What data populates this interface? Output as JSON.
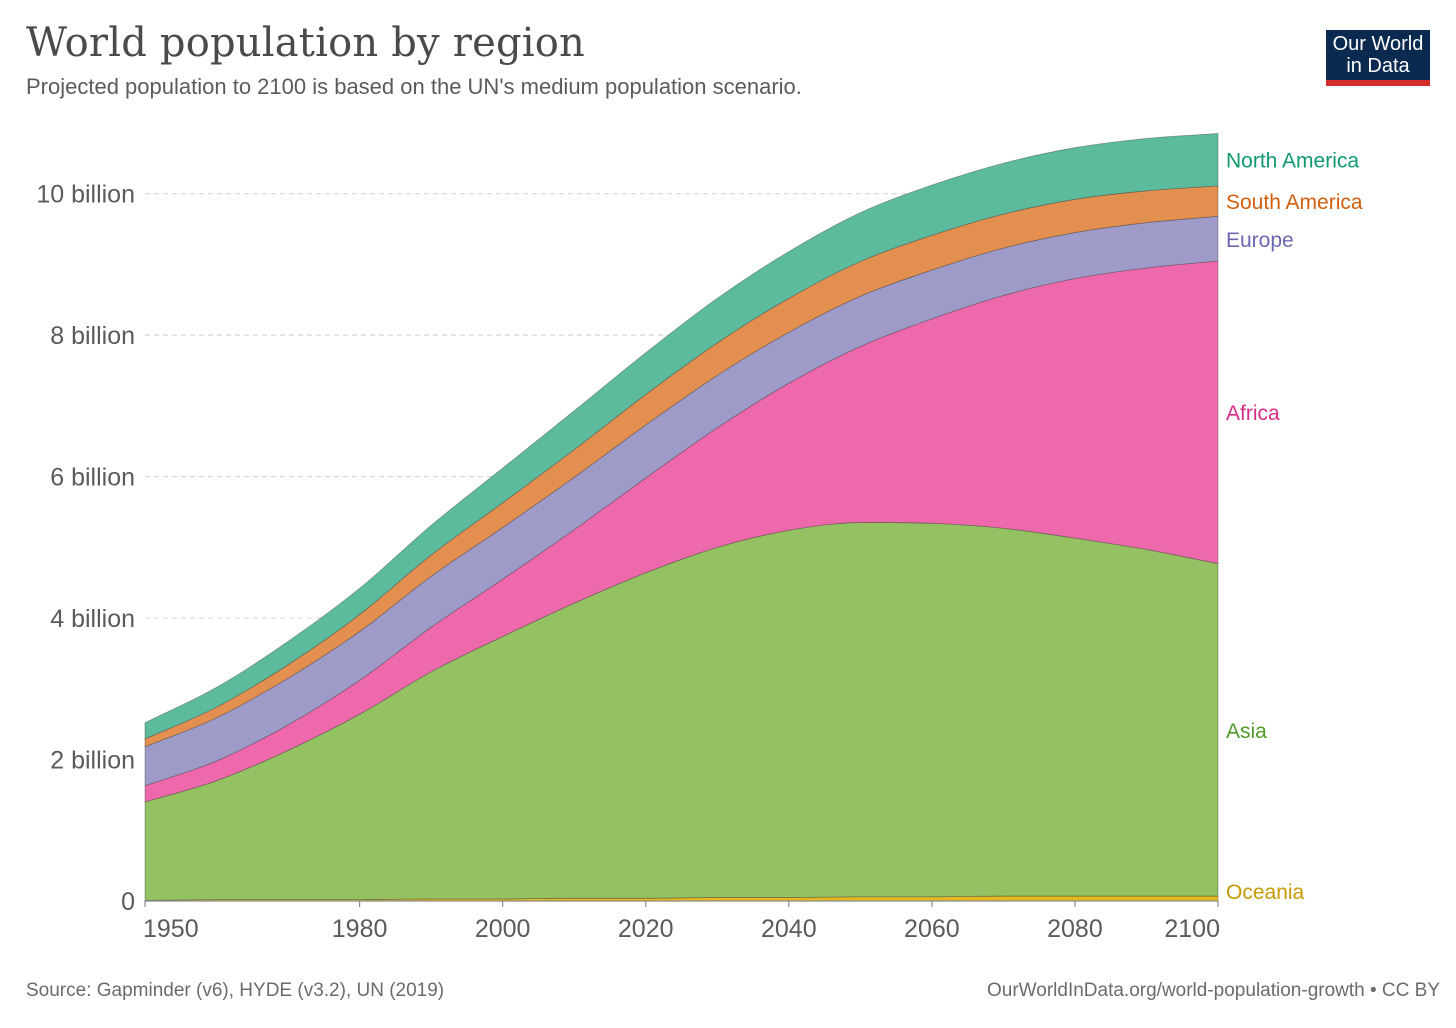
{
  "header": {
    "title": "World population by region",
    "subtitle": "Projected population to 2100 is based on the UN's medium population scenario."
  },
  "logo": {
    "line1": "Our World",
    "line2": "in Data",
    "bg_color": "#0b2a4f",
    "accent_color": "#d42b2b"
  },
  "footer": {
    "source": "Source: Gapminder (v6), HYDE (v3.2), UN (2019)",
    "url": "OurWorldInData.org/world-population-growth • CC BY"
  },
  "chart_data": {
    "type": "area",
    "stacked": true,
    "title": "World population by region",
    "subtitle": "Projected population to 2100 is based on the UN's medium population scenario.",
    "xlim": [
      1950,
      2100
    ],
    "ylim": [
      0,
      10.9
    ],
    "y_unit": "billion",
    "x_ticks": [
      1950,
      1980,
      2000,
      2020,
      2040,
      2060,
      2080,
      2100
    ],
    "y_ticks": [
      {
        "value": 0,
        "label": "0"
      },
      {
        "value": 2,
        "label": "2 billion"
      },
      {
        "value": 4,
        "label": "4 billion"
      },
      {
        "value": 6,
        "label": "6 billion"
      },
      {
        "value": 8,
        "label": "8 billion"
      },
      {
        "value": 10,
        "label": "10 billion"
      }
    ],
    "grid": "horizontal dashed",
    "legend": "right-end labels",
    "x": [
      1950,
      1960,
      1970,
      1980,
      1990,
      2000,
      2010,
      2020,
      2030,
      2040,
      2050,
      2060,
      2070,
      2080,
      2090,
      2100
    ],
    "series": [
      {
        "name": "Oceania",
        "color": "#e6b820",
        "label_color": "#c79a00",
        "values": [
          0.01,
          0.02,
          0.02,
          0.02,
          0.03,
          0.03,
          0.04,
          0.04,
          0.05,
          0.05,
          0.06,
          0.06,
          0.07,
          0.07,
          0.07,
          0.07
        ]
      },
      {
        "name": "Asia",
        "color": "#94c161",
        "label_color": "#4f9a2a",
        "values": [
          1.39,
          1.68,
          2.11,
          2.62,
          3.21,
          3.71,
          4.17,
          4.6,
          4.95,
          5.19,
          5.29,
          5.28,
          5.2,
          5.06,
          4.9,
          4.7
        ]
      },
      {
        "name": "Africa",
        "color": "#ee69ab",
        "label_color": "#d62d86",
        "values": [
          0.23,
          0.28,
          0.36,
          0.48,
          0.63,
          0.81,
          1.04,
          1.34,
          1.69,
          2.08,
          2.49,
          2.89,
          3.29,
          3.67,
          3.98,
          4.28
        ]
      },
      {
        "name": "Europe",
        "color": "#9e9bc9",
        "label_color": "#6c68b0",
        "values": [
          0.55,
          0.61,
          0.66,
          0.69,
          0.72,
          0.73,
          0.74,
          0.75,
          0.74,
          0.72,
          0.71,
          0.69,
          0.67,
          0.65,
          0.64,
          0.63
        ]
      },
      {
        "name": "South America",
        "color": "#e38f4f",
        "label_color": "#d15f0d",
        "values": [
          0.11,
          0.15,
          0.19,
          0.24,
          0.3,
          0.35,
          0.39,
          0.43,
          0.46,
          0.48,
          0.49,
          0.49,
          0.48,
          0.47,
          0.45,
          0.43
        ]
      },
      {
        "name": "North America",
        "color": "#5dbb9d",
        "label_color": "#109a6f",
        "values": [
          0.23,
          0.28,
          0.33,
          0.37,
          0.42,
          0.49,
          0.55,
          0.59,
          0.63,
          0.66,
          0.69,
          0.71,
          0.72,
          0.73,
          0.74,
          0.74
        ]
      }
    ]
  }
}
